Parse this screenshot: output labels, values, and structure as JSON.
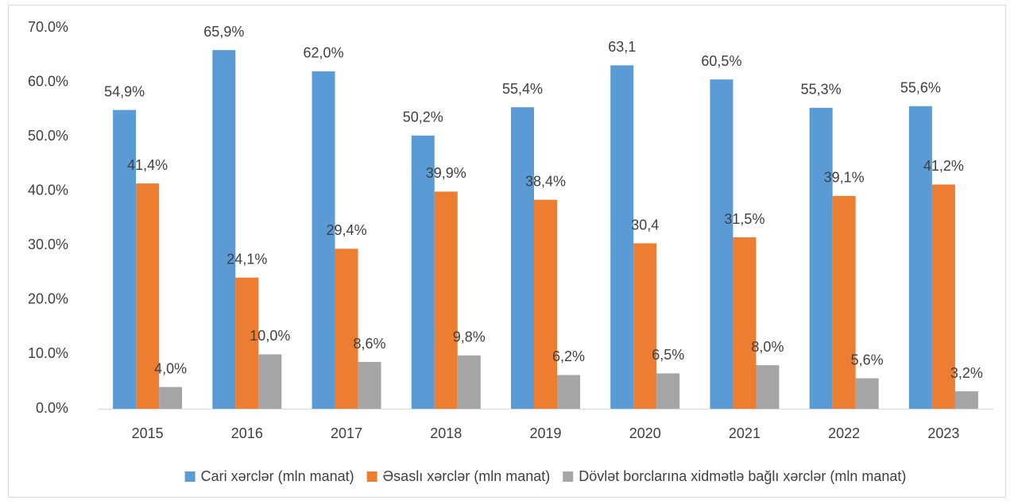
{
  "chart_data": {
    "type": "bar",
    "categories": [
      "2015",
      "2016",
      "2017",
      "2018",
      "2019",
      "2020",
      "2021",
      "2022",
      "2023"
    ],
    "series": [
      {
        "name": "Cari xərclər (mln manat)",
        "color": "#5b9bd5",
        "values": [
          54.9,
          65.9,
          62.0,
          50.2,
          55.4,
          63.1,
          60.5,
          55.3,
          55.6
        ],
        "value_labels": [
          "54,9%",
          "65,9%",
          "62,0%",
          "50,2%",
          "55,4%",
          "63,1",
          "60,5%",
          "55,3%",
          "55,6%"
        ]
      },
      {
        "name": "Əsaslı xərclər (mln manat)",
        "color": "#ed7d31",
        "values": [
          41.4,
          24.1,
          29.4,
          39.9,
          38.4,
          30.4,
          31.5,
          39.1,
          41.2
        ],
        "value_labels": [
          "41,4%",
          "24,1%",
          "29,4%",
          "39,9%",
          "38,4%",
          "30,4",
          "31,5%",
          "39,1%",
          "41,2%"
        ]
      },
      {
        "name": "Dövlət borclarına xidmətlə bağlı xərclər (mln manat)",
        "color": "#a5a5a5",
        "values": [
          4.0,
          10.0,
          8.6,
          9.8,
          6.2,
          6.5,
          8.0,
          5.6,
          3.2
        ],
        "value_labels": [
          "4,0%",
          "10,0%",
          "8,6%",
          "9,8%",
          "6,2%",
          "6,5%",
          "8,0%",
          "5,6%",
          "3,2%"
        ]
      }
    ],
    "ylim": [
      0,
      70
    ],
    "yticks": [
      {
        "value": 0,
        "label": "0.0%"
      },
      {
        "value": 10,
        "label": "10.0%"
      },
      {
        "value": 20,
        "label": "20.0%"
      },
      {
        "value": 30,
        "label": "30.0%"
      },
      {
        "value": 40,
        "label": "40.0%"
      },
      {
        "value": 50,
        "label": "50.0%"
      },
      {
        "value": 60,
        "label": "60.0%"
      },
      {
        "value": 70,
        "label": "70.0%"
      }
    ],
    "grid": false,
    "legend": "bottom"
  }
}
